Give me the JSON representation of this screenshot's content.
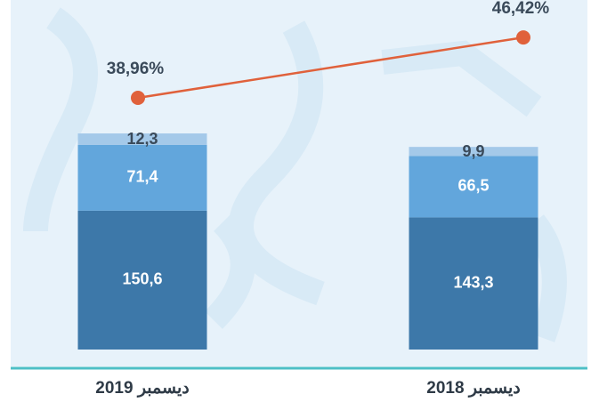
{
  "chart_data": {
    "type": "bar-line",
    "categories": [
      "ديسمبر 2019",
      "ديسمبر 2018"
    ],
    "series": [
      {
        "color": "#3d78a9",
        "values": [
          150.6,
          143.3
        ],
        "value_labels": [
          "150,6",
          "143,3"
        ]
      },
      {
        "color": "#62a6dc",
        "values": [
          71.4,
          66.5
        ],
        "value_labels": [
          "71,4",
          "66,5"
        ]
      },
      {
        "color": "#a4c9e9",
        "values": [
          12.3,
          9.9
        ],
        "value_labels": [
          "12,3",
          "9,9"
        ]
      }
    ],
    "line": {
      "color": "#e0613b",
      "values": [
        38.96,
        46.42
      ],
      "value_labels": [
        "38,96%",
        "46,42%"
      ]
    }
  }
}
